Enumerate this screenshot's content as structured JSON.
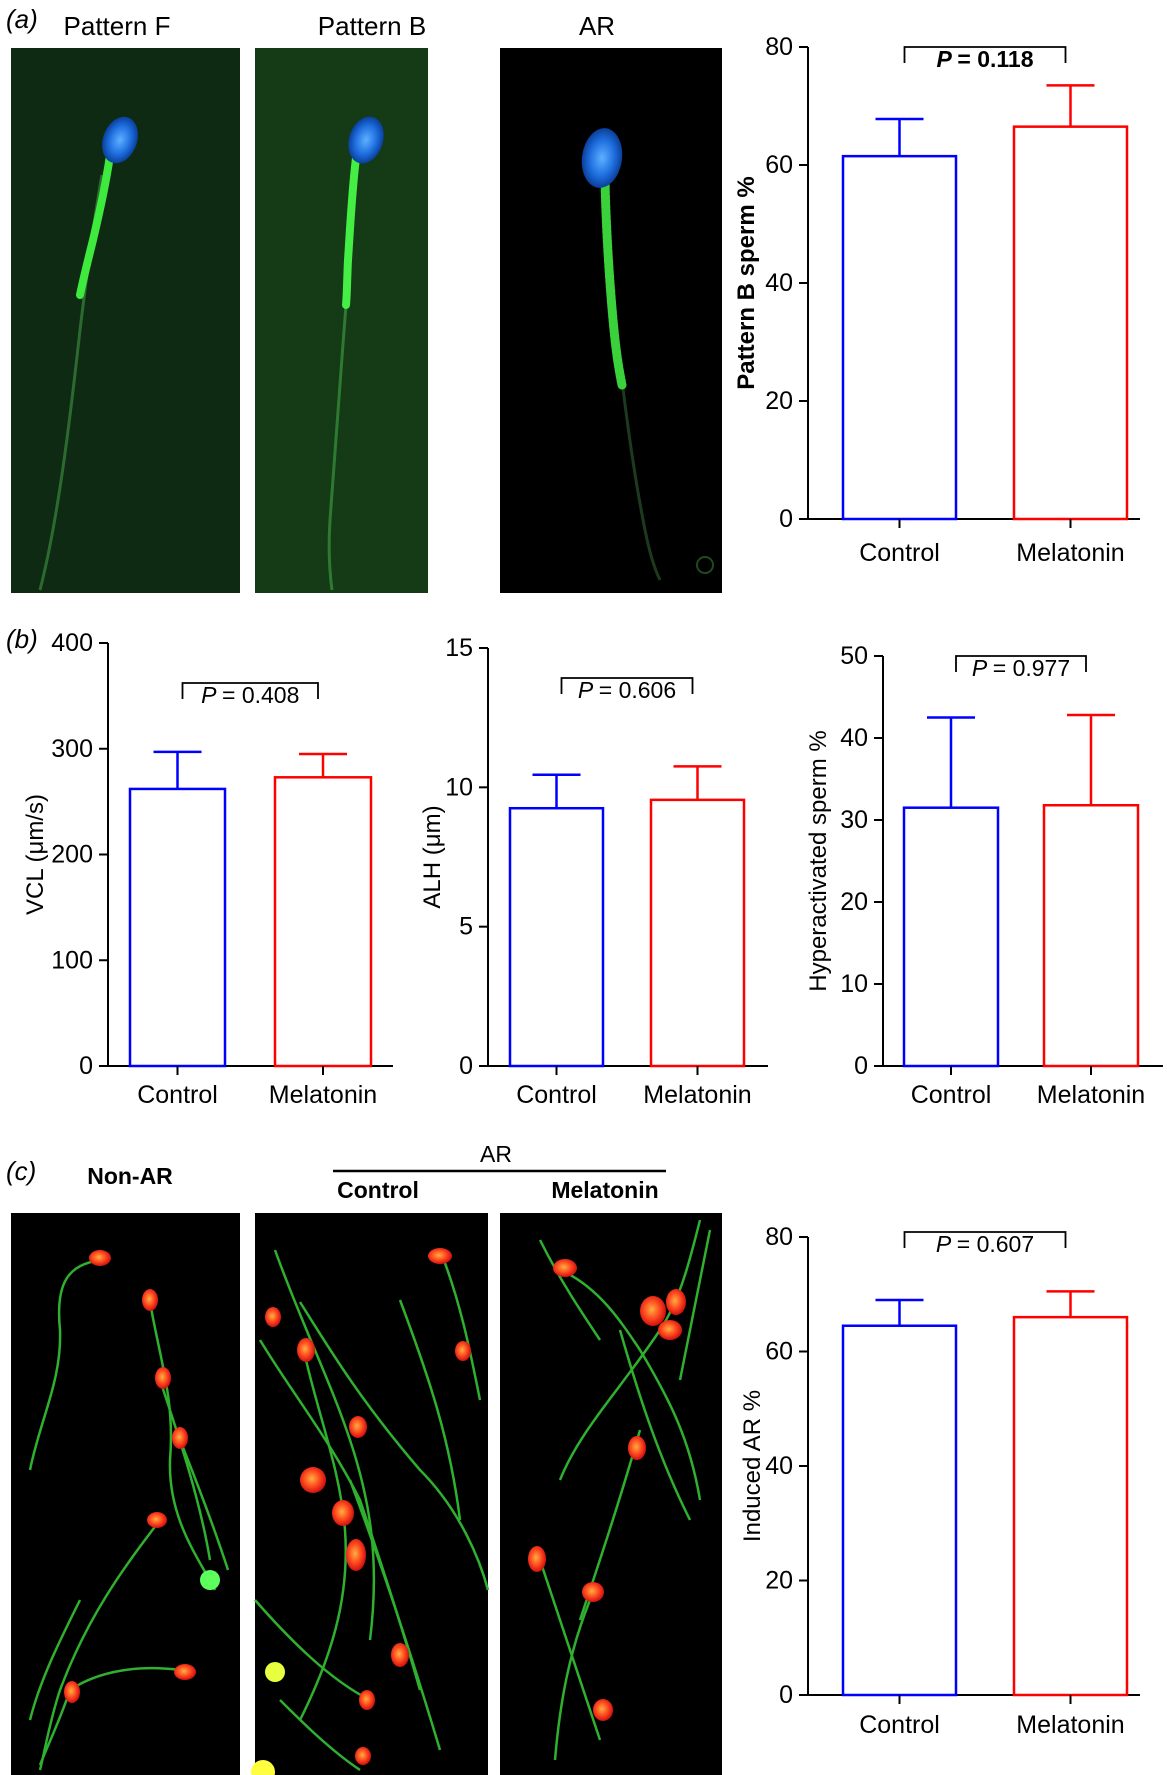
{
  "figure": {
    "panel_a": {
      "label": "(a)",
      "images": [
        {
          "title": "Pattern F"
        },
        {
          "title": "Pattern B"
        },
        {
          "title": "AR"
        }
      ]
    },
    "panel_b": {
      "label": "(b)"
    },
    "panel_c": {
      "label": "(c)",
      "non_ar_label": "Non-AR",
      "ar_label": "AR",
      "control_label": "Control",
      "melatonin_label": "Melatonin"
    }
  },
  "colors": {
    "control": "#0000ff",
    "melatonin": "#ff0000"
  },
  "chart_data": [
    {
      "id": "a",
      "type": "bar",
      "categories": [
        "Control",
        "Melatonin"
      ],
      "values": [
        61.5,
        66.5
      ],
      "errors": [
        6.3,
        7.0
      ],
      "ylabel": "Pattern B sperm %",
      "ylim": [
        0,
        80
      ],
      "yticks": [
        0,
        20,
        40,
        60,
        80
      ],
      "p_prefix": "P",
      "p_value": "= 0.118",
      "p_bold": true,
      "grid": false
    },
    {
      "id": "b1",
      "type": "bar",
      "categories": [
        "Control",
        "Melatonin"
      ],
      "values": [
        262,
        273
      ],
      "errors": [
        35,
        22
      ],
      "ylabel": "VCL (μm/s)",
      "ylim": [
        0,
        400
      ],
      "yticks": [
        0,
        100,
        200,
        300,
        400
      ],
      "p_prefix": "P",
      "p_value": "= 0.408",
      "grid": false
    },
    {
      "id": "b2",
      "type": "bar",
      "categories": [
        "Control",
        "Melatonin"
      ],
      "values": [
        9.25,
        9.55
      ],
      "errors": [
        1.2,
        1.2
      ],
      "ylabel": "ALH (μm)",
      "ylim": [
        0,
        15
      ],
      "yticks": [
        0,
        5,
        10,
        15
      ],
      "p_prefix": "P",
      "p_value": "= 0.606",
      "grid": false
    },
    {
      "id": "b3",
      "type": "bar",
      "categories": [
        "Control",
        "Melatonin"
      ],
      "values": [
        31.5,
        31.8
      ],
      "errors": [
        11.0,
        11.0
      ],
      "ylabel": "Hyperactivated sperm %",
      "ylim": [
        0,
        50
      ],
      "yticks": [
        0,
        10,
        20,
        30,
        40,
        50
      ],
      "p_prefix": "P",
      "p_value": "= 0.977",
      "grid": false
    },
    {
      "id": "c",
      "type": "bar",
      "categories": [
        "Control",
        "Melatonin"
      ],
      "values": [
        64.5,
        66
      ],
      "errors": [
        4.5,
        4.5
      ],
      "ylabel": "Induced AR %",
      "ylim": [
        0,
        80
      ],
      "yticks": [
        0,
        20,
        40,
        60,
        80
      ],
      "p_prefix": "P",
      "p_value": "= 0.607",
      "grid": false
    }
  ]
}
